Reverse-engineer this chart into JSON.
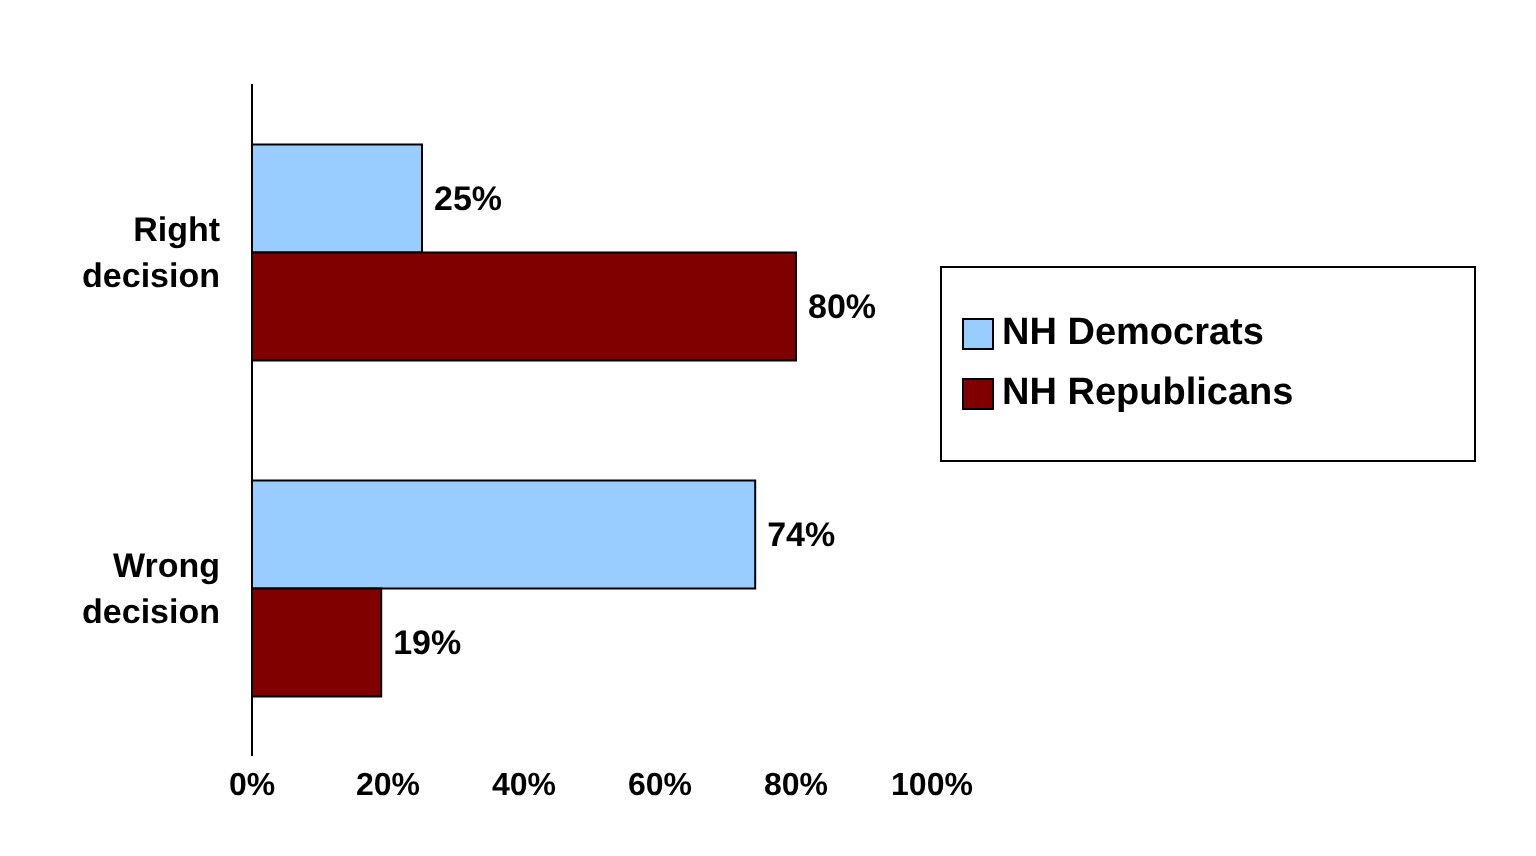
{
  "chart_data": {
    "type": "bar",
    "orientation": "horizontal",
    "categories": [
      "Right\ndecision",
      "Wrong\ndecision"
    ],
    "series": [
      {
        "name": "NH Democrats",
        "color": "#99ccff",
        "values": [
          25,
          74
        ],
        "value_labels": [
          "25%",
          "74%"
        ]
      },
      {
        "name": "NH Republicans",
        "color": "#800000",
        "values": [
          80,
          19
        ],
        "value_labels": [
          "80%",
          "19%"
        ]
      }
    ],
    "xlim": [
      0,
      100
    ],
    "xticks": [
      {
        "value": 0,
        "label": "0%"
      },
      {
        "value": 20,
        "label": "20%"
      },
      {
        "value": 40,
        "label": "40%"
      },
      {
        "value": 60,
        "label": "60%"
      },
      {
        "value": 80,
        "label": "80%"
      },
      {
        "value": 100,
        "label": "100%"
      }
    ],
    "grid": false,
    "legend": "right"
  }
}
